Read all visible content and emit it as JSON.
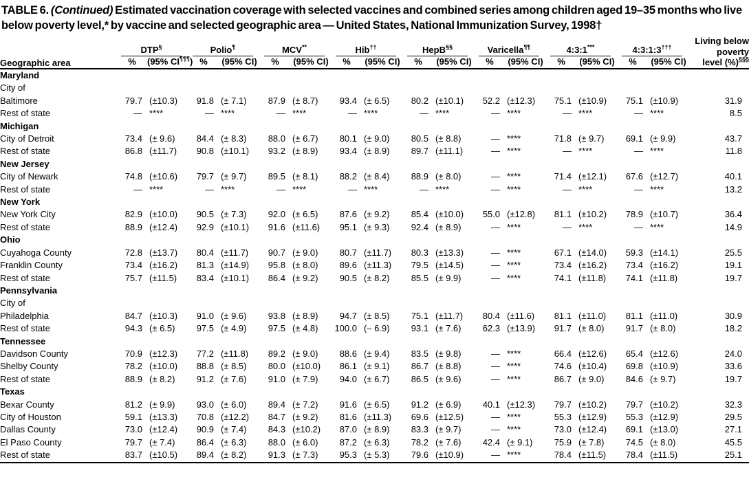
{
  "title": {
    "label": "TABLE 6.",
    "continued": "(Continued)",
    "rest": "Estimated vaccination coverage with selected vaccines and combined series among children aged 19–35 months who live below poverty level,* by vaccine and selected geographic area — United States, National Immunization Survey, 1998†"
  },
  "header": {
    "geo_label": "Geographic area",
    "poverty": {
      "lines": [
        "Living below",
        "poverty"
      ],
      "last_line": "level (%)",
      "marker": "§§§"
    },
    "vaccines": [
      {
        "name": "DTP",
        "marker": "§",
        "pct": "%",
        "ci_open": "(95% CI",
        "ci_marker": "¶¶¶",
        "ci_close": ")"
      },
      {
        "name": "Polio",
        "marker": "¶",
        "pct": "%",
        "ci_open": "(95% CI",
        "ci_marker": "",
        "ci_close": ")"
      },
      {
        "name": "MCV",
        "marker": "**",
        "pct": "%",
        "ci_open": "(95% CI",
        "ci_marker": "",
        "ci_close": ")"
      },
      {
        "name": "Hib",
        "marker": "††",
        "pct": "%",
        "ci_open": "(95% CI",
        "ci_marker": "",
        "ci_close": ")"
      },
      {
        "name": "HepB",
        "marker": "§§",
        "pct": "%",
        "ci_open": "(95% CI",
        "ci_marker": "",
        "ci_close": ")"
      },
      {
        "name": "Varicella",
        "marker": "¶¶",
        "pct": "%",
        "ci_open": "(95% CI",
        "ci_marker": "",
        "ci_close": ")"
      },
      {
        "name": "4:3:1",
        "marker": "***",
        "pct": "%",
        "ci_open": "(95% CI",
        "ci_marker": "",
        "ci_close": ")"
      },
      {
        "name": "4:3:1:3",
        "marker": "†††",
        "pct": "%",
        "ci_open": "(95% CI",
        "ci_marker": "",
        "ci_close": ")"
      }
    ]
  },
  "rows": [
    {
      "type": "state",
      "indent": 0,
      "label": "Maryland"
    },
    {
      "type": "group",
      "indent": 1,
      "label": "City of"
    },
    {
      "type": "data",
      "indent": 2,
      "label": "Baltimore",
      "values": [
        "79.7",
        "(±10.3)",
        "91.8",
        "(± 7.1)",
        "87.9",
        "(± 8.7)",
        "93.4",
        "(± 6.5)",
        "80.2",
        "(±10.1)",
        "52.2",
        "(±12.3)",
        "75.1",
        "(±10.9)",
        "75.1",
        "(±10.9)"
      ],
      "poverty": "31.9"
    },
    {
      "type": "data",
      "indent": 1,
      "label": "Rest of state",
      "values": [
        "—",
        "****",
        "—",
        "****",
        "—",
        "****",
        "—",
        "****",
        "—",
        "****",
        "—",
        "****",
        "—",
        "****",
        "—",
        "****"
      ],
      "poverty": "8.5"
    },
    {
      "type": "state",
      "indent": 0,
      "label": "Michigan"
    },
    {
      "type": "data",
      "indent": 1,
      "label": "City of Detroit",
      "values": [
        "73.4",
        "(± 9.6)",
        "84.4",
        "(± 8.3)",
        "88.0",
        "(± 6.7)",
        "80.1",
        "(± 9.0)",
        "80.5",
        "(± 8.8)",
        "—",
        "****",
        "71.8",
        "(± 9.7)",
        "69.1",
        "(± 9.9)"
      ],
      "poverty": "43.7"
    },
    {
      "type": "data",
      "indent": 1,
      "label": "Rest of state",
      "values": [
        "86.8",
        "(±11.7)",
        "90.8",
        "(±10.1)",
        "93.2",
        "(± 8.9)",
        "93.4",
        "(± 8.9)",
        "89.7",
        "(±11.1)",
        "—",
        "****",
        "—",
        "****",
        "—",
        "****"
      ],
      "poverty": "11.8"
    },
    {
      "type": "state",
      "indent": 0,
      "label": "New Jersey"
    },
    {
      "type": "data",
      "indent": 1,
      "label": "City of Newark",
      "values": [
        "74.8",
        "(±10.6)",
        "79.7",
        "(± 9.7)",
        "89.5",
        "(± 8.1)",
        "88.2",
        "(± 8.4)",
        "88.9",
        "(± 8.0)",
        "—",
        "****",
        "71.4",
        "(±12.1)",
        "67.6",
        "(±12.7)"
      ],
      "poverty": "40.1"
    },
    {
      "type": "data",
      "indent": 1,
      "label": "Rest of state",
      "values": [
        "—",
        "****",
        "—",
        "****",
        "—",
        "****",
        "—",
        "****",
        "—",
        "****",
        "—",
        "****",
        "—",
        "****",
        "—",
        "****"
      ],
      "poverty": "13.2"
    },
    {
      "type": "state",
      "indent": 0,
      "label": "New York"
    },
    {
      "type": "data",
      "indent": 1,
      "label": "New York City",
      "values": [
        "82.9",
        "(±10.0)",
        "90.5",
        "(± 7.3)",
        "92.0",
        "(± 6.5)",
        "87.6",
        "(± 9.2)",
        "85.4",
        "(±10.0)",
        "55.0",
        "(±12.8)",
        "81.1",
        "(±10.2)",
        "78.9",
        "(±10.7)"
      ],
      "poverty": "36.4"
    },
    {
      "type": "data",
      "indent": 1,
      "label": "Rest of state",
      "values": [
        "88.9",
        "(±12.4)",
        "92.9",
        "(±10.1)",
        "91.6",
        "(±11.6)",
        "95.1",
        "(± 9.3)",
        "92.4",
        "(± 8.9)",
        "—",
        "****",
        "—",
        "****",
        "—",
        "****"
      ],
      "poverty": "14.9"
    },
    {
      "type": "state",
      "indent": 0,
      "label": "Ohio"
    },
    {
      "type": "data",
      "indent": 1,
      "label": "Cuyahoga County",
      "values": [
        "72.8",
        "(±13.7)",
        "80.4",
        "(±11.7)",
        "90.7",
        "(± 9.0)",
        "80.7",
        "(±11.7)",
        "80.3",
        "(±13.3)",
        "—",
        "****",
        "67.1",
        "(±14.0)",
        "59.3",
        "(±14.1)"
      ],
      "poverty": "25.5"
    },
    {
      "type": "data",
      "indent": 1,
      "label": "Franklin County",
      "values": [
        "73.4",
        "(±16.2)",
        "81.3",
        "(±14.9)",
        "95.8",
        "(± 8.0)",
        "89.6",
        "(±11.3)",
        "79.5",
        "(±14.5)",
        "—",
        "****",
        "73.4",
        "(±16.2)",
        "73.4",
        "(±16.2)"
      ],
      "poverty": "19.1"
    },
    {
      "type": "data",
      "indent": 1,
      "label": "Rest of state",
      "values": [
        "75.7",
        "(±11.5)",
        "83.4",
        "(±10.1)",
        "86.4",
        "(± 9.2)",
        "90.5",
        "(± 8.2)",
        "85.5",
        "(± 9.9)",
        "—",
        "****",
        "74.1",
        "(±11.8)",
        "74.1",
        "(±11.8)"
      ],
      "poverty": "19.7"
    },
    {
      "type": "state",
      "indent": 0,
      "label": "Pennsylvania"
    },
    {
      "type": "group",
      "indent": 1,
      "label": "City of"
    },
    {
      "type": "data",
      "indent": 2,
      "label": "Philadelphia",
      "values": [
        "84.7",
        "(±10.3)",
        "91.0",
        "(± 9.6)",
        "93.8",
        "(± 8.9)",
        "94.7",
        "(± 8.5)",
        "75.1",
        "(±11.7)",
        "80.4",
        "(±11.6)",
        "81.1",
        "(±11.0)",
        "81.1",
        "(±11.0)"
      ],
      "poverty": "30.9"
    },
    {
      "type": "data",
      "indent": 1,
      "label": "Rest of state",
      "values": [
        "94.3",
        "(± 6.5)",
        "97.5",
        "(± 4.9)",
        "97.5",
        "(± 4.8)",
        "100.0",
        "(– 6.9)",
        "93.1",
        "(± 7.6)",
        "62.3",
        "(±13.9)",
        "91.7",
        "(± 8.0)",
        "91.7",
        "(± 8.0)"
      ],
      "poverty": "18.2"
    },
    {
      "type": "state",
      "indent": 0,
      "label": "Tennessee"
    },
    {
      "type": "data",
      "indent": 1,
      "label": "Davidson County",
      "values": [
        "70.9",
        "(±12.3)",
        "77.2",
        "(±11.8)",
        "89.2",
        "(± 9.0)",
        "88.6",
        "(± 9.4)",
        "83.5",
        "(± 9.8)",
        "—",
        "****",
        "66.4",
        "(±12.6)",
        "65.4",
        "(±12.6)"
      ],
      "poverty": "24.0"
    },
    {
      "type": "data",
      "indent": 1,
      "label": "Shelby County",
      "values": [
        "78.2",
        "(±10.0)",
        "88.8",
        "(± 8.5)",
        "80.0",
        "(±10.0)",
        "86.1",
        "(± 9.1)",
        "86.7",
        "(± 8.8)",
        "—",
        "****",
        "74.6",
        "(±10.4)",
        "69.8",
        "(±10.9)"
      ],
      "poverty": "33.6"
    },
    {
      "type": "data",
      "indent": 1,
      "label": "Rest of state",
      "values": [
        "88.9",
        "(± 8.2)",
        "91.2",
        "(± 7.6)",
        "91.0",
        "(± 7.9)",
        "94.0",
        "(± 6.7)",
        "86.5",
        "(± 9.6)",
        "—",
        "****",
        "86.7",
        "(± 9.0)",
        "84.6",
        "(± 9.7)"
      ],
      "poverty": "19.7"
    },
    {
      "type": "state",
      "indent": 0,
      "label": "Texas"
    },
    {
      "type": "data",
      "indent": 1,
      "label": "Bexar County",
      "values": [
        "81.2",
        "(± 9.9)",
        "93.0",
        "(± 6.0)",
        "89.4",
        "(± 7.2)",
        "91.6",
        "(± 6.5)",
        "91.2",
        "(± 6.9)",
        "40.1",
        "(±12.3)",
        "79.7",
        "(±10.2)",
        "79.7",
        "(±10.2)"
      ],
      "poverty": "32.3"
    },
    {
      "type": "data",
      "indent": 1,
      "label": "City of Houston",
      "values": [
        "59.1",
        "(±13.3)",
        "70.8",
        "(±12.2)",
        "84.7",
        "(± 9.2)",
        "81.6",
        "(±11.3)",
        "69.6",
        "(±12.5)",
        "—",
        "****",
        "55.3",
        "(±12.9)",
        "55.3",
        "(±12.9)"
      ],
      "poverty": "29.5"
    },
    {
      "type": "data",
      "indent": 1,
      "label": "Dallas County",
      "values": [
        "73.0",
        "(±12.4)",
        "90.9",
        "(± 7.4)",
        "84.3",
        "(±10.2)",
        "87.0",
        "(± 8.9)",
        "83.3",
        "(± 9.7)",
        "—",
        "****",
        "73.0",
        "(±12.4)",
        "69.1",
        "(±13.0)"
      ],
      "poverty": "27.1"
    },
    {
      "type": "data",
      "indent": 1,
      "label": "El Paso County",
      "values": [
        "79.7",
        "(± 7.4)",
        "86.4",
        "(± 6.3)",
        "88.0",
        "(± 6.0)",
        "87.2",
        "(± 6.3)",
        "78.2",
        "(± 7.6)",
        "42.4",
        "(± 9.1)",
        "75.9",
        "(± 7.8)",
        "74.5",
        "(± 8.0)"
      ],
      "poverty": "45.5"
    },
    {
      "type": "data",
      "indent": 1,
      "label": "Rest of state",
      "values": [
        "83.7",
        "(±10.5)",
        "89.4",
        "(± 8.2)",
        "91.3",
        "(± 7.3)",
        "95.3",
        "(± 5.3)",
        "79.6",
        "(±10.9)",
        "—",
        "****",
        "78.4",
        "(±11.5)",
        "78.4",
        "(±11.5)"
      ],
      "poverty": "25.1"
    }
  ]
}
